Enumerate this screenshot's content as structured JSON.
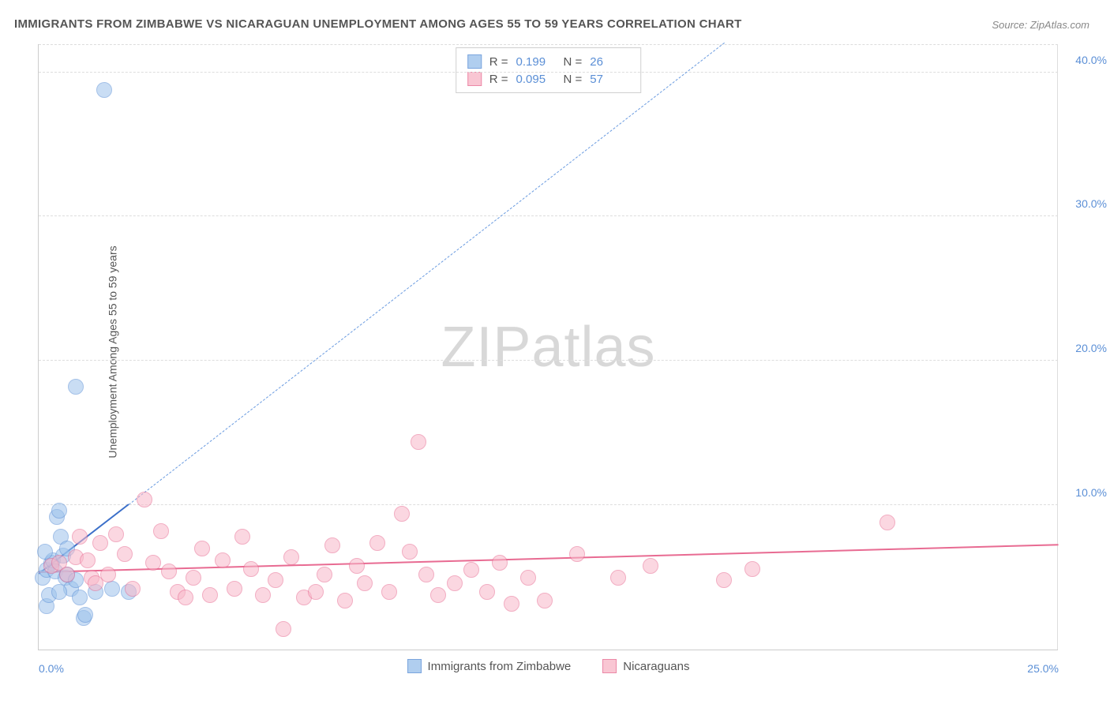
{
  "title": "IMMIGRANTS FROM ZIMBABWE VS NICARAGUAN UNEMPLOYMENT AMONG AGES 55 TO 59 YEARS CORRELATION CHART",
  "source_label": "Source: ZipAtlas.com",
  "y_axis_label": "Unemployment Among Ages 55 to 59 years",
  "watermark": {
    "part1": "ZIP",
    "part2": "atlas"
  },
  "plot": {
    "type": "scatter",
    "xlim": [
      0,
      25
    ],
    "ylim": [
      0,
      42
    ],
    "x_ticks": [
      {
        "value": 0,
        "label": "0.0%"
      },
      {
        "value": 25,
        "label": "25.0%"
      }
    ],
    "y_ticks": [
      {
        "value": 10,
        "label": "10.0%"
      },
      {
        "value": 20,
        "label": "20.0%"
      },
      {
        "value": 30,
        "label": "30.0%"
      },
      {
        "value": 40,
        "label": "40.0%"
      }
    ],
    "grid_color": "#dddddd",
    "background_color": "#ffffff",
    "series": [
      {
        "id": "zimbabwe",
        "label": "Immigrants from Zimbabwe",
        "fill_color": "#9dc3ec",
        "stroke_color": "#5b8fd6",
        "fill_opacity": 0.55,
        "marker_radius": 10,
        "R": "0.199",
        "N": "26",
        "trend": {
          "solid": {
            "x1": 0,
            "y1": 5.2,
            "x2": 2.2,
            "y2": 10.0,
            "color": "#3b6fc9",
            "width": 2
          },
          "dashed": {
            "x1": 2.2,
            "y1": 10.0,
            "x2": 16.8,
            "y2": 42.0,
            "color": "#6a9be0",
            "width": 1,
            "dash": true
          }
        },
        "points": [
          {
            "x": 1.6,
            "y": 38.8
          },
          {
            "x": 0.9,
            "y": 18.2
          },
          {
            "x": 0.1,
            "y": 5.0
          },
          {
            "x": 0.2,
            "y": 5.5
          },
          {
            "x": 0.3,
            "y": 6.0
          },
          {
            "x": 0.35,
            "y": 6.2
          },
          {
            "x": 0.4,
            "y": 5.4
          },
          {
            "x": 0.45,
            "y": 9.2
          },
          {
            "x": 0.5,
            "y": 9.6
          },
          {
            "x": 0.55,
            "y": 7.8
          },
          {
            "x": 0.6,
            "y": 6.5
          },
          {
            "x": 0.65,
            "y": 5.0
          },
          {
            "x": 0.7,
            "y": 5.2
          },
          {
            "x": 0.8,
            "y": 4.2
          },
          {
            "x": 0.9,
            "y": 4.8
          },
          {
            "x": 1.0,
            "y": 3.6
          },
          {
            "x": 1.1,
            "y": 2.2
          },
          {
            "x": 1.15,
            "y": 2.4
          },
          {
            "x": 0.2,
            "y": 3.0
          },
          {
            "x": 0.25,
            "y": 3.8
          },
          {
            "x": 1.4,
            "y": 4.0
          },
          {
            "x": 1.8,
            "y": 4.2
          },
          {
            "x": 2.2,
            "y": 4.0
          },
          {
            "x": 0.15,
            "y": 6.8
          },
          {
            "x": 0.5,
            "y": 4.0
          },
          {
            "x": 0.7,
            "y": 7.0
          }
        ]
      },
      {
        "id": "nicaraguans",
        "label": "Nicaraguans",
        "fill_color": "#f8b8c9",
        "stroke_color": "#e86b92",
        "fill_opacity": 0.55,
        "marker_radius": 10,
        "R": "0.095",
        "N": "57",
        "trend": {
          "solid": {
            "x1": 0,
            "y1": 5.3,
            "x2": 25,
            "y2": 7.2,
            "color": "#e86b92",
            "width": 2
          }
        },
        "points": [
          {
            "x": 0.3,
            "y": 5.8
          },
          {
            "x": 0.5,
            "y": 6.0
          },
          {
            "x": 0.7,
            "y": 5.2
          },
          {
            "x": 0.9,
            "y": 6.4
          },
          {
            "x": 1.0,
            "y": 7.8
          },
          {
            "x": 1.2,
            "y": 6.2
          },
          {
            "x": 1.3,
            "y": 5.0
          },
          {
            "x": 1.5,
            "y": 7.4
          },
          {
            "x": 1.7,
            "y": 5.2
          },
          {
            "x": 1.9,
            "y": 8.0
          },
          {
            "x": 2.1,
            "y": 6.6
          },
          {
            "x": 2.3,
            "y": 4.2
          },
          {
            "x": 2.6,
            "y": 10.4
          },
          {
            "x": 2.8,
            "y": 6.0
          },
          {
            "x": 3.0,
            "y": 8.2
          },
          {
            "x": 3.2,
            "y": 5.4
          },
          {
            "x": 3.4,
            "y": 4.0
          },
          {
            "x": 3.6,
            "y": 3.6
          },
          {
            "x": 3.8,
            "y": 5.0
          },
          {
            "x": 4.0,
            "y": 7.0
          },
          {
            "x": 4.2,
            "y": 3.8
          },
          {
            "x": 4.5,
            "y": 6.2
          },
          {
            "x": 4.8,
            "y": 4.2
          },
          {
            "x": 5.0,
            "y": 7.8
          },
          {
            "x": 5.2,
            "y": 5.6
          },
          {
            "x": 5.5,
            "y": 3.8
          },
          {
            "x": 5.8,
            "y": 4.8
          },
          {
            "x": 6.0,
            "y": 1.4
          },
          {
            "x": 6.2,
            "y": 6.4
          },
          {
            "x": 6.5,
            "y": 3.6
          },
          {
            "x": 6.8,
            "y": 4.0
          },
          {
            "x": 7.0,
            "y": 5.2
          },
          {
            "x": 7.2,
            "y": 7.2
          },
          {
            "x": 7.5,
            "y": 3.4
          },
          {
            "x": 7.8,
            "y": 5.8
          },
          {
            "x": 8.0,
            "y": 4.6
          },
          {
            "x": 8.3,
            "y": 7.4
          },
          {
            "x": 8.6,
            "y": 4.0
          },
          {
            "x": 8.9,
            "y": 9.4
          },
          {
            "x": 9.1,
            "y": 6.8
          },
          {
            "x": 9.3,
            "y": 14.4
          },
          {
            "x": 9.5,
            "y": 5.2
          },
          {
            "x": 9.8,
            "y": 3.8
          },
          {
            "x": 10.2,
            "y": 4.6
          },
          {
            "x": 10.6,
            "y": 5.5
          },
          {
            "x": 11.0,
            "y": 4.0
          },
          {
            "x": 11.3,
            "y": 6.0
          },
          {
            "x": 11.6,
            "y": 3.2
          },
          {
            "x": 12.0,
            "y": 5.0
          },
          {
            "x": 12.4,
            "y": 3.4
          },
          {
            "x": 13.2,
            "y": 6.6
          },
          {
            "x": 14.2,
            "y": 5.0
          },
          {
            "x": 15.0,
            "y": 5.8
          },
          {
            "x": 16.8,
            "y": 4.8
          },
          {
            "x": 17.5,
            "y": 5.6
          },
          {
            "x": 20.8,
            "y": 8.8
          },
          {
            "x": 1.4,
            "y": 4.6
          }
        ]
      }
    ]
  },
  "stats_legend": {
    "rows": [
      {
        "series": "zimbabwe",
        "R_label": "R =",
        "N_label": "N ="
      },
      {
        "series": "nicaraguans",
        "R_label": "R =",
        "N_label": "N ="
      }
    ]
  }
}
